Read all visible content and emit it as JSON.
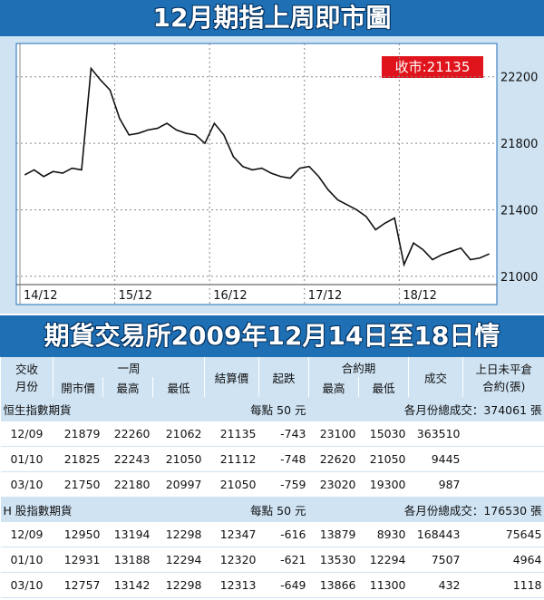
{
  "chart_data": {
    "type": "line",
    "title": "12月期指上周即市圖",
    "annotation": "收市:21135",
    "color": "#111111",
    "categories": [
      "14/12",
      null,
      null,
      null,
      null,
      null,
      null,
      null,
      null,
      null,
      "15/12",
      null,
      null,
      null,
      null,
      null,
      null,
      null,
      null,
      null,
      "16/12",
      null,
      null,
      null,
      null,
      null,
      null,
      null,
      null,
      null,
      "17/12",
      null,
      null,
      null,
      null,
      null,
      null,
      null,
      null,
      null,
      "18/12",
      null,
      null,
      null,
      null,
      null,
      null,
      null,
      null,
      null
    ],
    "values": [
      21610,
      21640,
      21600,
      21630,
      21620,
      21650,
      21640,
      22250,
      22180,
      22120,
      21950,
      21850,
      21860,
      21880,
      21890,
      21920,
      21880,
      21860,
      21850,
      21800,
      21920,
      21850,
      21720,
      21660,
      21640,
      21650,
      21620,
      21600,
      21590,
      21650,
      21660,
      21600,
      21520,
      21460,
      21430,
      21400,
      21360,
      21280,
      21320,
      21350,
      21070,
      21200,
      21160,
      21100,
      21130,
      21150,
      21170,
      21100,
      21110,
      21135
    ],
    "ylim": [
      20950,
      22400
    ],
    "yticks": [
      21000,
      21400,
      21800,
      22200
    ],
    "grid": true
  },
  "table": {
    "title": "期貨交易所2009年12月14日至18日情",
    "headers": {
      "month": [
        "交收",
        "月份"
      ],
      "week": "一周",
      "open": "開市價",
      "high": "最高",
      "low": "最低",
      "settle": "結算價",
      "change": "起跌",
      "contract": "合約期",
      "c_high": "最高",
      "c_low": "最低",
      "volume": "成交",
      "oi": [
        "上日未平倉",
        "合約(張)"
      ]
    },
    "sections": [
      {
        "name": "恒生指數期貨",
        "point": "每點 50 元",
        "total": "各月份總成交：374061 張",
        "rows": [
          [
            "12/09",
            21879,
            22260,
            21062,
            21135,
            -743,
            23100,
            15030,
            363510
          ],
          [
            "01/10",
            21825,
            22243,
            21050,
            21112,
            -748,
            22620,
            21050,
            9445
          ],
          [
            "03/10",
            21750,
            22180,
            20997,
            21050,
            -759,
            23020,
            19300,
            987
          ]
        ]
      },
      {
        "name": "H 股指數期貨",
        "point": "每點 50 元",
        "total": "各月份總成交：176530 張",
        "rows": [
          [
            "12/09",
            12950,
            13194,
            12298,
            12347,
            -616,
            13879,
            8930,
            168443,
            75645
          ],
          [
            "01/10",
            12931,
            13188,
            12294,
            12320,
            -621,
            13530,
            12294,
            7507,
            4964
          ],
          [
            "03/10",
            12757,
            13142,
            12298,
            12313,
            -649,
            13866,
            11300,
            432,
            1118
          ]
        ]
      }
    ]
  }
}
